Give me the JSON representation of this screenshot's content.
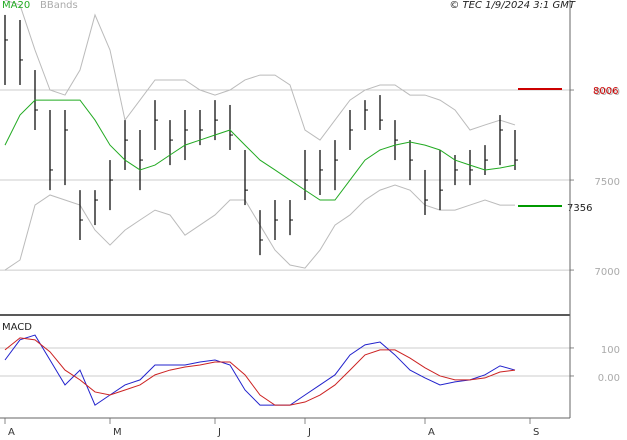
{
  "title": "© TEC 1/9/2024 3:1 GMT",
  "chart_data": [
    {
      "type": "ohlc",
      "categories": [
        "A",
        null,
        null,
        null,
        null,
        null,
        null,
        "M",
        null,
        null,
        null,
        null,
        null,
        null,
        "J",
        null,
        null,
        null,
        null,
        null,
        "J",
        null,
        null,
        null,
        null,
        null,
        null,
        null,
        "A",
        null,
        null,
        null,
        null,
        null,
        null,
        "S"
      ],
      "high": [
        8417,
        8389,
        8111,
        7889,
        7889,
        7444,
        7444,
        7611,
        7833,
        7778,
        7944,
        7833,
        7889,
        7889,
        7944,
        7917,
        7667,
        7333,
        7389,
        7389,
        7667,
        7667,
        7722,
        7889,
        7944,
        7972,
        7833,
        7722,
        7556,
        7667,
        7639,
        7667,
        7694,
        7861,
        7778,
        null
      ],
      "low": [
        8028,
        8028,
        7778,
        7444,
        7472,
        7167,
        7250,
        7333,
        7556,
        7444,
        7667,
        7583,
        7611,
        7694,
        7722,
        7667,
        7361,
        7083,
        7167,
        7194,
        7389,
        7417,
        7444,
        7667,
        7778,
        7778,
        7611,
        7500,
        7306,
        7333,
        7472,
        7472,
        7528,
        7583,
        7556,
        null
      ],
      "close": [
        8278,
        8167,
        7889,
        7556,
        7778,
        7278,
        7389,
        7500,
        7722,
        7611,
        7833,
        7722,
        7778,
        7778,
        7833,
        7750,
        7444,
        7167,
        7278,
        7278,
        7500,
        7556,
        7611,
        7778,
        7889,
        7833,
        7722,
        7611,
        7389,
        7444,
        7556,
        7556,
        7611,
        7778,
        7611,
        null
      ],
      "bar_color": "#111111",
      "series": [
        {
          "name": "MA20",
          "color": "#22aa22",
          "values": [
            7694,
            7861,
            7944,
            7944,
            7944,
            7944,
            7833,
            7694,
            7611,
            7556,
            7583,
            7639,
            7694,
            7722,
            7750,
            7778,
            7694,
            7611,
            7556,
            7500,
            7444,
            7389,
            7389,
            7500,
            7611,
            7667,
            7694,
            7711,
            7694,
            7667,
            7611,
            7583,
            7556,
            7567,
            7583,
            null
          ]
        },
        {
          "name": "BBands",
          "color": "#bbbbbb",
          "upper": [
            8500,
            8472,
            8222,
            8000,
            7972,
            8111,
            8417,
            8222,
            7833,
            7944,
            8056,
            8056,
            8056,
            8000,
            7972,
            8000,
            8056,
            8083,
            8083,
            8028,
            7778,
            7722,
            7833,
            7944,
            8000,
            8028,
            8028,
            7972,
            7972,
            7944,
            7889,
            7778,
            7806,
            7833,
            7806,
            null
          ],
          "lower": [
            7000,
            7056,
            7361,
            7417,
            7389,
            7361,
            7222,
            7139,
            7222,
            7278,
            7333,
            7306,
            7194,
            7250,
            7306,
            7389,
            7389,
            7250,
            7111,
            7028,
            7011,
            7111,
            7250,
            7306,
            7389,
            7444,
            7472,
            7444,
            7361,
            7333,
            7333,
            7361,
            7389,
            7361,
            7361,
            null
          ]
        }
      ],
      "annotations": [
        {
          "value": 8006,
          "color": "#cc0000"
        },
        {
          "value": 7356,
          "color": "#009900"
        }
      ],
      "ylim": [
        6756,
        8500
      ],
      "yticks": [
        8000,
        7500,
        7000
      ],
      "grid": true
    },
    {
      "type": "line",
      "series": [
        {
          "name": "MACD",
          "color": "#2222cc",
          "values": [
            57,
            129,
            146,
            57,
            -32,
            21,
            -104,
            -68,
            -32,
            -14,
            39,
            39,
            39,
            50,
            57,
            39,
            -50,
            -104,
            -104,
            -104,
            -68,
            -32,
            4,
            75,
            111,
            121,
            75,
            21,
            -7,
            -32,
            -21,
            -14,
            4,
            36,
            21,
            null
          ]
        },
        {
          "color": "#cc2222",
          "values": [
            93,
            136,
            129,
            86,
            21,
            -14,
            -57,
            -68,
            -50,
            -32,
            4,
            21,
            32,
            39,
            50,
            50,
            4,
            -68,
            -104,
            -104,
            -93,
            -68,
            -32,
            21,
            75,
            93,
            93,
            64,
            29,
            0,
            -14,
            -14,
            -7,
            14,
            21,
            null
          ]
        }
      ],
      "ylim": [
        -150,
        214
      ],
      "yticks": [
        100,
        {
          "value": 0,
          "label": "0.00"
        }
      ],
      "grid": true
    }
  ]
}
